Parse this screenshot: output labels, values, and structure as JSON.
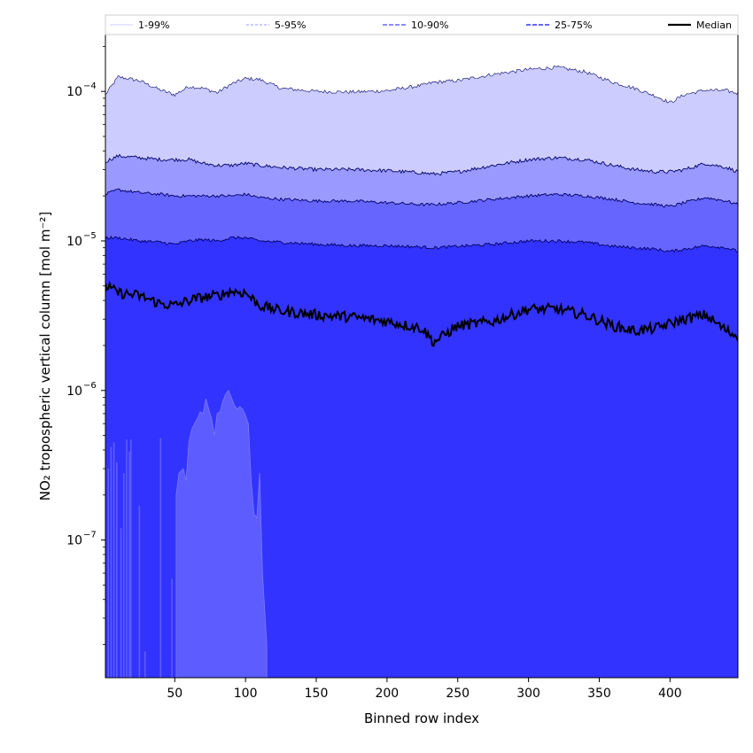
{
  "chart_data": {
    "type": "area",
    "xlabel": "Binned row index",
    "ylabel": "NO₂ tropospheric vertical column [mol m⁻²]",
    "xlim": [
      1,
      448
    ],
    "ylim": [
      1.2e-08,
      0.00024
    ],
    "yscale": "log",
    "x_ticks": [
      50,
      100,
      150,
      200,
      250,
      300,
      350,
      400
    ],
    "x_tick_labels": [
      "50",
      "100",
      "150",
      "200",
      "250",
      "300",
      "350",
      "400"
    ],
    "y_ticks": [
      1e-07,
      1e-06,
      1e-05,
      0.0001
    ],
    "y_tick_labels": [
      "10",
      "10",
      "10",
      "10"
    ],
    "y_tick_exponents": [
      "−7",
      "−6",
      "−5",
      "−4"
    ],
    "legend": {
      "position": "top",
      "entries": [
        "1-99%",
        "5-95%",
        "10-90%",
        "25-75%",
        "Median"
      ]
    },
    "x_anchors": [
      1,
      10,
      25,
      40,
      50,
      60,
      70,
      80,
      90,
      100,
      110,
      125,
      150,
      175,
      200,
      225,
      233,
      250,
      275,
      300,
      320,
      340,
      360,
      375,
      390,
      400,
      410,
      425,
      440,
      448
    ],
    "series": [
      {
        "name": "1-99%",
        "color": "#ccccff",
        "role": "upper",
        "values": [
          9.5e-05,
          0.000125,
          0.000118,
          0.000102,
          9.5e-05,
          0.000108,
          0.000105,
          9.8e-05,
          0.000112,
          0.000122,
          0.00012,
          0.000105,
          0.0001,
          9.9e-05,
          0.000101,
          0.00011,
          0.000115,
          0.000118,
          0.00013,
          0.00014,
          0.000145,
          0.000135,
          0.000115,
          0.000105,
          9.3e-05,
          8.4e-05,
          9.5e-05,
          0.000102,
          0.000101,
          9.7e-05
        ]
      },
      {
        "name": "5-95%",
        "color": "#9999ff",
        "role": "upper",
        "values": [
          3.4e-05,
          3.7e-05,
          3.6e-05,
          3.5e-05,
          3.5e-05,
          3.5e-05,
          3.3e-05,
          3.2e-05,
          3.2e-05,
          3.3e-05,
          3.2e-05,
          3.1e-05,
          3e-05,
          3e-05,
          2.95e-05,
          2.85e-05,
          2.8e-05,
          2.9e-05,
          3.2e-05,
          3.5e-05,
          3.6e-05,
          3.5e-05,
          3.2e-05,
          3e-05,
          2.9e-05,
          2.9e-05,
          3e-05,
          3.3e-05,
          3.1e-05,
          2.9e-05
        ]
      },
      {
        "name": "10-90%",
        "color": "#6666ff",
        "role": "upper",
        "values": [
          2.05e-05,
          2.2e-05,
          2.1e-05,
          2.05e-05,
          2e-05,
          2e-05,
          2e-05,
          2e-05,
          2e-05,
          2.05e-05,
          1.95e-05,
          1.9e-05,
          1.85e-05,
          1.85e-05,
          1.8e-05,
          1.75e-05,
          1.75e-05,
          1.8e-05,
          1.9e-05,
          2e-05,
          2.05e-05,
          2e-05,
          1.9e-05,
          1.8e-05,
          1.75e-05,
          1.7e-05,
          1.8e-05,
          1.95e-05,
          1.85e-05,
          1.75e-05
        ]
      },
      {
        "name": "25-75%",
        "color": "#3333ff",
        "role": "upper",
        "values": [
          1.05e-05,
          1.05e-05,
          1e-05,
          9.8e-06,
          9.5e-06,
          1e-05,
          1.02e-05,
          1e-05,
          1.05e-05,
          1.05e-05,
          1e-05,
          9.8e-06,
          9.5e-06,
          9.3e-06,
          9.3e-06,
          9.1e-06,
          9e-06,
          9.2e-06,
          9.5e-06,
          1e-05,
          1e-05,
          9.8e-06,
          9.2e-06,
          9e-06,
          8.8e-06,
          8.5e-06,
          8.8e-06,
          9.3e-06,
          9e-06,
          8.5e-06
        ]
      },
      {
        "name": "Median",
        "color": "#000000",
        "role": "line",
        "values": [
          5e-06,
          4.5e-06,
          4.3e-06,
          3.8e-06,
          3.7e-06,
          4e-06,
          4.2e-06,
          4.3e-06,
          4.6e-06,
          4.5e-06,
          3.7e-06,
          3.4e-06,
          3.2e-06,
          3.1e-06,
          2.9e-06,
          2.6e-06,
          2.1e-06,
          2.7e-06,
          2.9e-06,
          3.5e-06,
          3.5e-06,
          3.2e-06,
          2.7e-06,
          2.5e-06,
          2.6e-06,
          2.8e-06,
          3e-06,
          3.2e-06,
          2.5e-06,
          2.3e-06
        ]
      }
    ],
    "lower_band": {
      "name": "1% lower bound",
      "color": "#5c5cff",
      "spikes": [
        {
          "x": 3,
          "y": 3e-07
        },
        {
          "x": 5,
          "y": 4.2e-07
        },
        {
          "x": 7,
          "y": 4.5e-07
        },
        {
          "x": 9,
          "y": 3.3e-07
        },
        {
          "x": 12,
          "y": 1.2e-07
        },
        {
          "x": 14,
          "y": 2.8e-07
        },
        {
          "x": 16,
          "y": 4.7e-07
        },
        {
          "x": 18,
          "y": 3.9e-07
        },
        {
          "x": 19,
          "y": 4.7e-07
        },
        {
          "x": 25,
          "y": 1.7e-07
        },
        {
          "x": 29,
          "y": 1.8e-08
        },
        {
          "x": 40,
          "y": 4.8e-07
        },
        {
          "x": 48,
          "y": 5.5e-08
        }
      ],
      "envelope_x": [
        51,
        53,
        56,
        58,
        60,
        62,
        64,
        66,
        68,
        70,
        72,
        74,
        76,
        78,
        80,
        82,
        84,
        86,
        88,
        90,
        92,
        94,
        96,
        98,
        100,
        102,
        104,
        106,
        108,
        110,
        112,
        115
      ],
      "envelope_y": [
        2e-07,
        2.8e-07,
        3e-07,
        2.5e-07,
        4.5e-07,
        5.5e-07,
        6e-07,
        6.5e-07,
        7.2e-07,
        7e-07,
        8.8e-07,
        7.5e-07,
        6.5e-07,
        5e-07,
        7e-07,
        7.2e-07,
        8.5e-07,
        9.5e-07,
        1e-06,
        9e-07,
        8e-07,
        7.5e-07,
        7.8e-07,
        7.5e-07,
        6.8e-07,
        6e-07,
        2.5e-07,
        1.5e-07,
        1.4e-07,
        2.8e-07,
        6e-08,
        2e-08
      ]
    }
  }
}
